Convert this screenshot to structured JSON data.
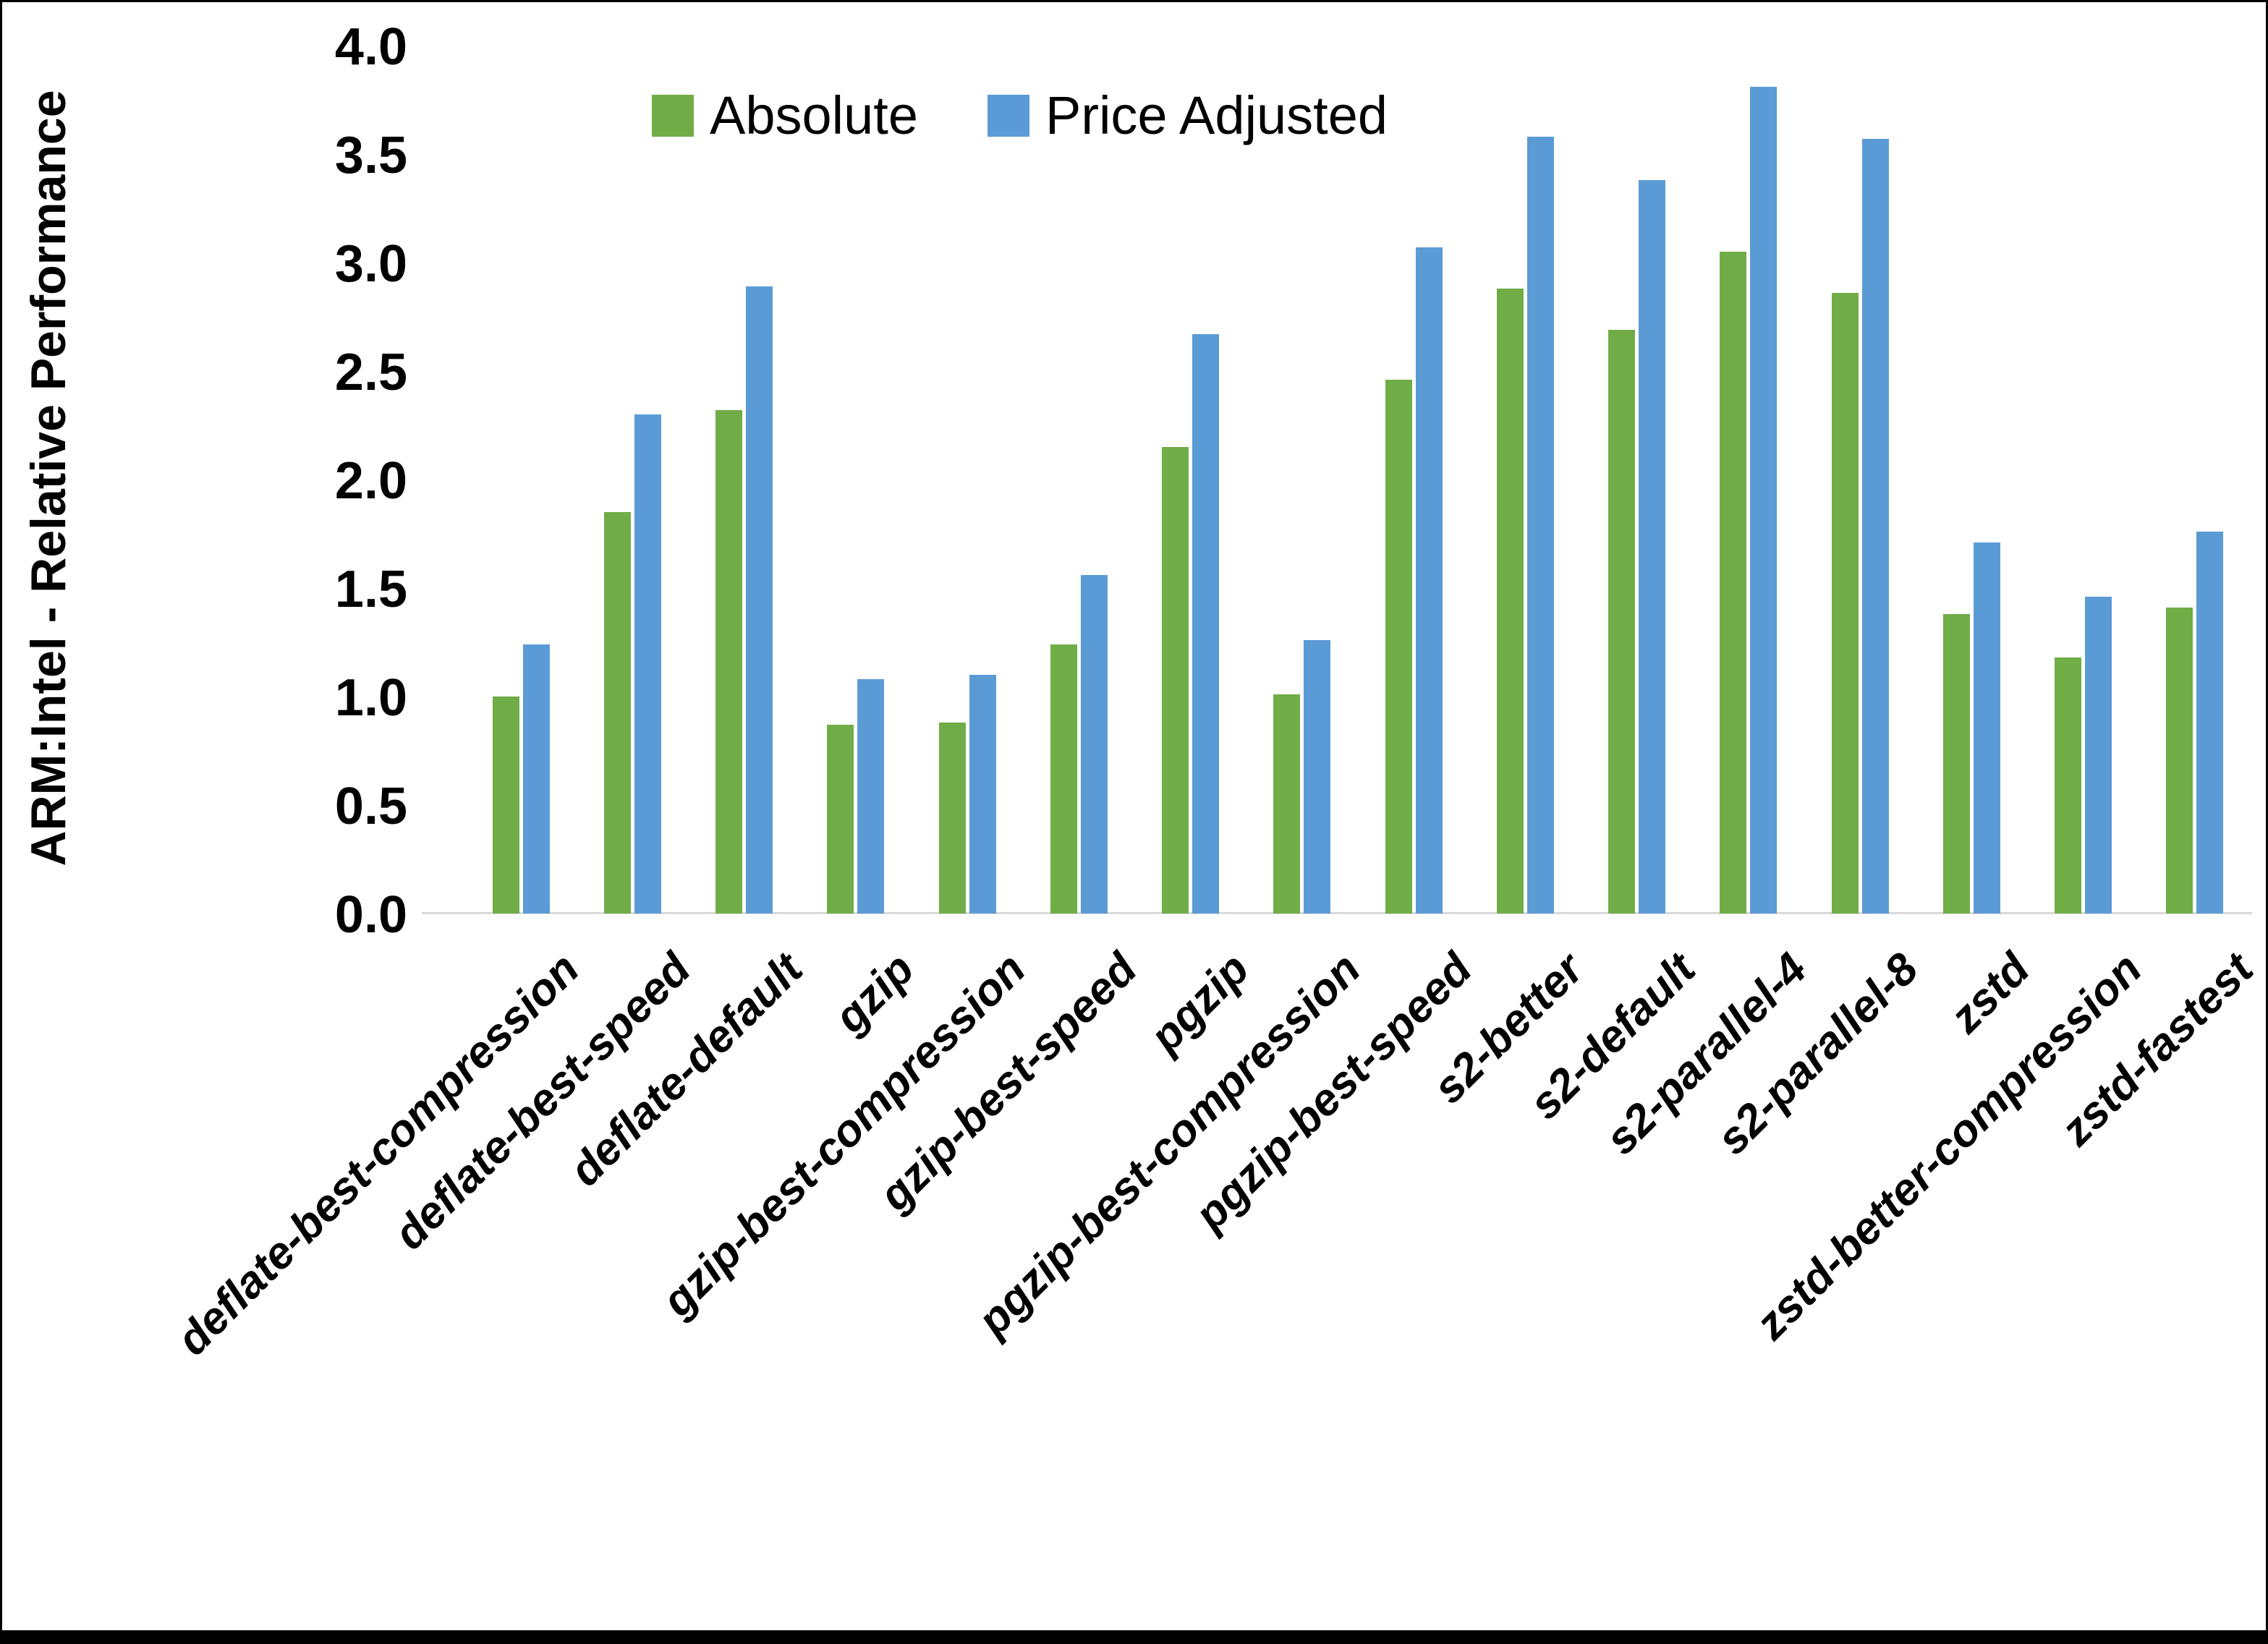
{
  "chart_data": {
    "type": "bar",
    "title": "",
    "xlabel": "",
    "ylabel": "ARM:Intel - Relative Performance",
    "ylim": [
      0.0,
      4.0
    ],
    "ytick_step": 0.5,
    "ytick_labels": [
      "0.0",
      "0.5",
      "1.0",
      "1.5",
      "2.0",
      "2.5",
      "3.0",
      "3.5",
      "4.0"
    ],
    "grid": false,
    "legend_position": "top-center-inside",
    "background_color": "#ffffff",
    "axis_line_color": "#d9d9d9",
    "categories": [
      "deflate-best-compression",
      "deflate-best-speed",
      "deflate-default",
      "gzip",
      "gzip-best-compression",
      "gzip-best-speed",
      "pgzip",
      "pgzip-best-compression",
      "pgzip-best-speed",
      "s2-better",
      "s2-default",
      "s2-parallel-4",
      "s2-parallel-8",
      "zstd",
      "zstd-better-compression",
      "zstd-fastest"
    ],
    "series": [
      {
        "name": "Absolute",
        "color": "#70AD47",
        "values": [
          1.0,
          1.85,
          2.32,
          0.87,
          0.88,
          1.24,
          2.15,
          1.01,
          2.46,
          2.88,
          2.69,
          3.05,
          2.86,
          1.38,
          1.18,
          1.41
        ]
      },
      {
        "name": "Price Adjusted",
        "color": "#5B9BD5",
        "values": [
          1.24,
          2.3,
          2.89,
          1.08,
          1.1,
          1.56,
          2.67,
          1.26,
          3.07,
          3.58,
          3.38,
          3.81,
          3.57,
          1.71,
          1.46,
          1.76
        ]
      }
    ]
  }
}
